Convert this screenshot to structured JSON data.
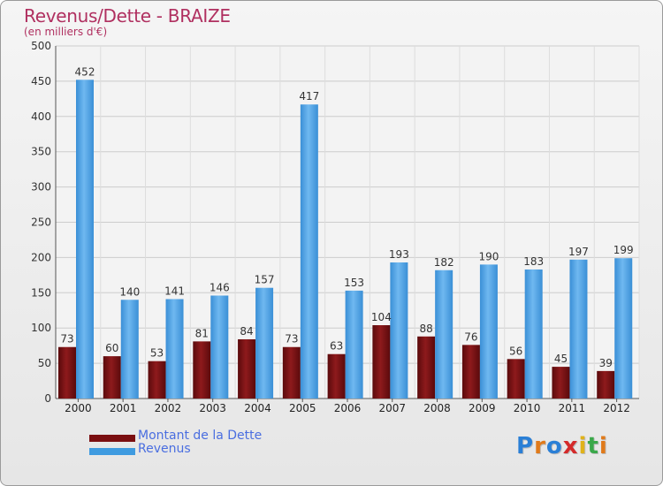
{
  "header": {
    "title": "Revenus/Dette - BRAIZE",
    "subtitle": "(en milliers d'€)"
  },
  "legend": {
    "items": [
      {
        "label": "Montant de la Dette",
        "color": "#7a0e10"
      },
      {
        "label": "Revenus",
        "color": "#3f9be0"
      }
    ]
  },
  "logo": {
    "letters": [
      "P",
      "r",
      "o",
      "x",
      "i",
      "t",
      "i"
    ],
    "colors": [
      "#2a7fd6",
      "#e07a1a",
      "#2a7fd6",
      "#d42a2a",
      "#e0b21a",
      "#3aa84a",
      "#e07a1a"
    ]
  },
  "chart_data": {
    "type": "bar",
    "categories": [
      "2000",
      "2001",
      "2002",
      "2003",
      "2004",
      "2005",
      "2006",
      "2007",
      "2008",
      "2009",
      "2010",
      "2011",
      "2012"
    ],
    "series": [
      {
        "name": "Montant de la Dette",
        "values": [
          73,
          60,
          53,
          81,
          84,
          73,
          63,
          104,
          88,
          76,
          56,
          45,
          39
        ],
        "color": "#7a0e10"
      },
      {
        "name": "Revenus",
        "values": [
          452,
          140,
          141,
          146,
          157,
          417,
          153,
          193,
          182,
          190,
          183,
          197,
          199
        ],
        "color": "#3f9be0"
      }
    ],
    "title": "Revenus/Dette - BRAIZE",
    "subtitle": "(en milliers d'€)",
    "xlabel": "",
    "ylabel": "",
    "ylim": [
      0,
      500
    ],
    "yticks": [
      0,
      50,
      100,
      150,
      200,
      250,
      300,
      350,
      400,
      450,
      500
    ],
    "grid": true,
    "legend_position": "bottom-left"
  }
}
